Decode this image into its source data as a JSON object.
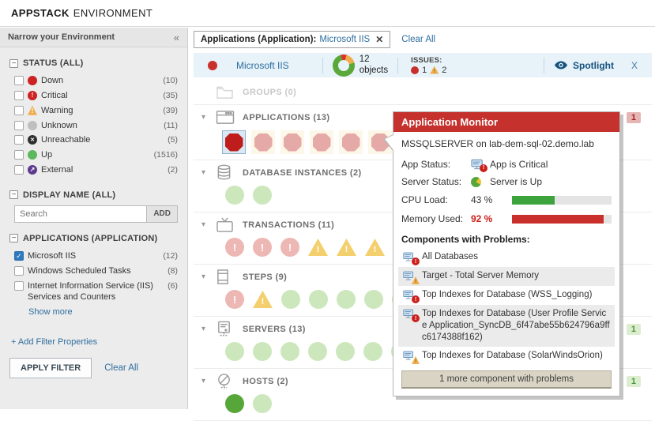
{
  "header": {
    "brand": "APPSTACK",
    "title": "ENVIRONMENT"
  },
  "sidebar": {
    "title": "Narrow your Environment",
    "collapse_icon": "«",
    "status_group": {
      "title": "STATUS (ALL)",
      "items": [
        {
          "label": "Down",
          "count": "(10)",
          "status": "down",
          "checked": false
        },
        {
          "label": "Critical",
          "count": "(35)",
          "status": "critical",
          "checked": false
        },
        {
          "label": "Warning",
          "count": "(39)",
          "status": "warning",
          "checked": false
        },
        {
          "label": "Unknown",
          "count": "(11)",
          "status": "unknown",
          "checked": false
        },
        {
          "label": "Unreachable",
          "count": "(5)",
          "status": "unreachable",
          "checked": false
        },
        {
          "label": "Up",
          "count": "(1516)",
          "status": "up",
          "checked": false
        },
        {
          "label": "External",
          "count": "(2)",
          "status": "external",
          "checked": false
        }
      ]
    },
    "display_name_group": {
      "title": "DISPLAY NAME (ALL)",
      "search_placeholder": "Search",
      "add_label": "ADD"
    },
    "applications_group": {
      "title": "APPLICATIONS (APPLICATION)",
      "items": [
        {
          "label": "Microsoft IIS",
          "count": "(12)",
          "checked": true
        },
        {
          "label": "Windows Scheduled Tasks",
          "count": "(8)",
          "checked": false
        },
        {
          "label": "Internet Information Service (IIS) Services and Counters",
          "count": "(6)",
          "checked": false
        }
      ],
      "show_more": "Show more"
    },
    "add_filter_link": "+ Add Filter Properties",
    "apply_button": "APPLY FILTER",
    "clear_all_link": "Clear All"
  },
  "filter_bar": {
    "chip_label": "Applications (Application):",
    "chip_value": "Microsoft IIS",
    "remove_icon": "✕",
    "clear_all": "Clear All"
  },
  "status_bar": {
    "app_name": "Microsoft IIS",
    "objects_count": "12",
    "objects_label": "objects",
    "issues_label": "ISSUES:",
    "critical_count": "1",
    "warning_count": "2",
    "spotlight_label": "Spotlight",
    "close_label": "X",
    "donut": {
      "segments": [
        {
          "status": "critical",
          "count": 1,
          "color": "#d9342b"
        },
        {
          "status": "warning",
          "count": 2,
          "color": "#f0ad4e"
        },
        {
          "status": "up",
          "count": 9,
          "color": "#5aa839"
        }
      ]
    }
  },
  "sections": [
    {
      "id": "groups",
      "label": "GROUPS (0)",
      "icon": "folder-icon",
      "disabled": true,
      "collapsible": false,
      "badge": null,
      "boxed": false,
      "items": []
    },
    {
      "id": "applications",
      "label": "APPLICATIONS (13)",
      "icon": "app-window-icon",
      "disabled": false,
      "collapsible": true,
      "badge": {
        "text": "1",
        "type": "critical"
      },
      "boxed": true,
      "items": [
        "down-selected",
        "down",
        "down",
        "down",
        "down",
        "down",
        "critical-dashed",
        "up",
        "up",
        "up",
        "up",
        "up",
        "up"
      ]
    },
    {
      "id": "database-instances",
      "label": "DATABASE INSTANCES (2)",
      "icon": "database-icon",
      "disabled": false,
      "collapsible": true,
      "badge": null,
      "boxed": false,
      "items": [
        "up",
        "up"
      ]
    },
    {
      "id": "transactions",
      "label": "TRANSACTIONS (11)",
      "icon": "tv-icon",
      "disabled": false,
      "collapsible": true,
      "badge": null,
      "boxed": false,
      "items": [
        "critical",
        "critical",
        "critical",
        "warning",
        "warning",
        "warning",
        "warning",
        "up",
        "up",
        "up",
        "up"
      ]
    },
    {
      "id": "steps",
      "label": "STEPS (9)",
      "icon": "film-icon",
      "disabled": false,
      "collapsible": true,
      "badge": null,
      "boxed": false,
      "items": [
        "critical",
        "warning",
        "up",
        "up",
        "up",
        "up",
        "up",
        "up",
        "up"
      ]
    },
    {
      "id": "servers",
      "label": "SERVERS (13)",
      "icon": "server-icon",
      "disabled": false,
      "collapsible": true,
      "badge": {
        "text": "1",
        "type": "up"
      },
      "boxed": false,
      "items": [
        "up",
        "up",
        "up",
        "up",
        "up",
        "up",
        "up",
        "up",
        "up",
        "up",
        "up",
        "up",
        "up-strong"
      ]
    },
    {
      "id": "hosts",
      "label": "HOSTS (2)",
      "icon": "globe-icon",
      "disabled": false,
      "collapsible": true,
      "badge": {
        "text": "1",
        "type": "up"
      },
      "boxed": false,
      "items": [
        "up-strong",
        "up"
      ]
    }
  ],
  "popup": {
    "title": "Application Monitor",
    "subtitle": "MSSQLSERVER on lab-dem-sql-02.demo.lab",
    "app_status_label": "App Status:",
    "app_status_value": "App is Critical",
    "server_status_label": "Server Status:",
    "server_status_value": "Server is Up",
    "cpu_label": "CPU Load:",
    "cpu_value": "43 %",
    "cpu_pct": 43,
    "memory_label": "Memory Used:",
    "memory_value": "92 %",
    "memory_pct": 92,
    "components_label": "Components with Problems:",
    "components": [
      {
        "text": "All Databases",
        "severity": "critical",
        "shaded": false
      },
      {
        "text": "Target - Total Server Memory",
        "severity": "warning",
        "shaded": true
      },
      {
        "text": "Top Indexes for Database (WSS_Logging)",
        "severity": "critical",
        "shaded": false
      },
      {
        "text": "Top Indexes for Database (User Profile Service Application_SyncDB_6f47abe55b624796a9ffc6174388f162)",
        "severity": "critical",
        "shaded": true
      },
      {
        "text": "Top Indexes for Database (SolarWindsOrion)",
        "severity": "warning",
        "shaded": false
      }
    ],
    "more_button": "1 more component with problems"
  },
  "colors": {
    "popup_header_red": "#c5312d",
    "link_blue": "#2e6e9e",
    "status_up": "#57a639",
    "status_down": "#c9302c",
    "status_warning": "#f0ad4e",
    "cpu_bar_fill": "#3da33c",
    "memory_bar_fill": "#c9302c"
  }
}
